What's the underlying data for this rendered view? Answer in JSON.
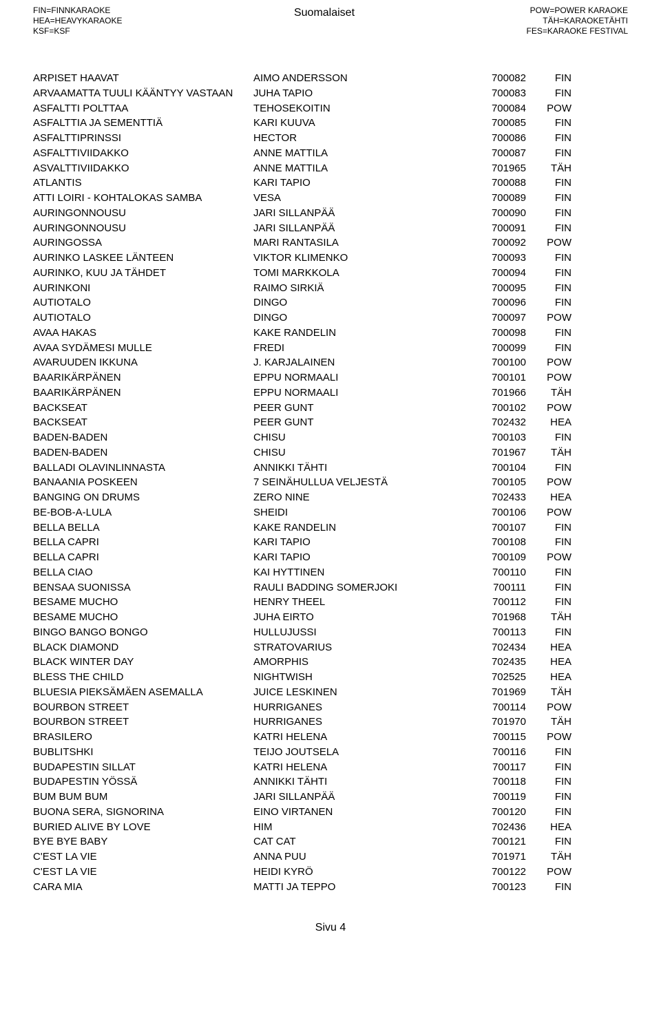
{
  "header": {
    "left": [
      "FIN=FINNKARAOKE",
      "HEA=HEAVYKARAOKE",
      "KSF=KSF"
    ],
    "center": "Suomalaiset",
    "right": [
      "POW=POWER KARAOKE",
      "TÄH=KARAOKETÄHTI",
      "FES=KARAOKE FESTIVAL"
    ]
  },
  "footer": "Sivu 4",
  "rows": [
    {
      "song": "ARPISET HAAVAT",
      "artist": "AIMO ANDERSSON",
      "id": "700082",
      "src": "FIN"
    },
    {
      "song": "ARVAAMATTA TUULI KÄÄNTYY VASTAAN",
      "artist": "JUHA TAPIO",
      "id": "700083",
      "src": "FIN"
    },
    {
      "song": "ASFALTTI POLTTAA",
      "artist": "TEHOSEKOITIN",
      "id": "700084",
      "src": "POW"
    },
    {
      "song": "ASFALTTIA JA SEMENTTIÄ",
      "artist": "KARI KUUVA",
      "id": "700085",
      "src": "FIN"
    },
    {
      "song": "ASFALTTIPRINSSI",
      "artist": "HECTOR",
      "id": "700086",
      "src": "FIN"
    },
    {
      "song": "ASFALTTIVIIDAKKO",
      "artist": "ANNE MATTILA",
      "id": "700087",
      "src": "FIN"
    },
    {
      "song": "ASVALTTIVIIDAKKO",
      "artist": "ANNE MATTILA",
      "id": "701965",
      "src": "TÄH"
    },
    {
      "song": "ATLANTIS",
      "artist": "KARI TAPIO",
      "id": "700088",
      "src": "FIN"
    },
    {
      "song": "ATTI LOIRI - KOHTALOKAS SAMBA",
      "artist": "VESA",
      "id": "700089",
      "src": "FIN"
    },
    {
      "song": "AURINGONNOUSU",
      "artist": "JARI SILLANPÄÄ",
      "id": "700090",
      "src": "FIN"
    },
    {
      "song": "AURINGONNOUSU",
      "artist": "JARI SILLANPÄÄ",
      "id": "700091",
      "src": "FIN"
    },
    {
      "song": "AURINGOSSA",
      "artist": "MARI RANTASILA",
      "id": "700092",
      "src": "POW"
    },
    {
      "song": "AURINKO LASKEE LÄNTEEN",
      "artist": "VIKTOR KLIMENKO",
      "id": "700093",
      "src": "FIN"
    },
    {
      "song": "AURINKO, KUU JA TÄHDET",
      "artist": "TOMI MARKKOLA",
      "id": "700094",
      "src": "FIN"
    },
    {
      "song": "AURINKONI",
      "artist": "RAIMO SIRKIÄ",
      "id": "700095",
      "src": "FIN"
    },
    {
      "song": "AUTIOTALO",
      "artist": "DINGO",
      "id": "700096",
      "src": "FIN"
    },
    {
      "song": "AUTIOTALO",
      "artist": "DINGO",
      "id": "700097",
      "src": "POW"
    },
    {
      "song": "AVAA HAKAS",
      "artist": "KAKE RANDELIN",
      "id": "700098",
      "src": "FIN"
    },
    {
      "song": "AVAA SYDÄMESI MULLE",
      "artist": "FREDI",
      "id": "700099",
      "src": "FIN"
    },
    {
      "song": "AVARUUDEN IKKUNA",
      "artist": "J. KARJALAINEN",
      "id": "700100",
      "src": "POW"
    },
    {
      "song": "BAARIKÄRPÄNEN",
      "artist": "EPPU NORMAALI",
      "id": "700101",
      "src": "POW"
    },
    {
      "song": "BAARIKÄRPÄNEN",
      "artist": "EPPU NORMAALI",
      "id": "701966",
      "src": "TÄH"
    },
    {
      "song": "BACKSEAT",
      "artist": "PEER GUNT",
      "id": "700102",
      "src": "POW"
    },
    {
      "song": "BACKSEAT",
      "artist": "PEER GUNT",
      "id": "702432",
      "src": "HEA"
    },
    {
      "song": "BADEN-BADEN",
      "artist": "CHISU",
      "id": "700103",
      "src": "FIN"
    },
    {
      "song": "BADEN-BADEN",
      "artist": "CHISU",
      "id": "701967",
      "src": "TÄH"
    },
    {
      "song": "BALLADI OLAVINLINNASTA",
      "artist": "ANNIKKI TÄHTI",
      "id": "700104",
      "src": "FIN"
    },
    {
      "song": "BANAANIA POSKEEN",
      "artist": "7 SEINÄHULLUA VELJESTÄ",
      "id": "700105",
      "src": "POW"
    },
    {
      "song": "BANGING ON DRUMS",
      "artist": "ZERO NINE",
      "id": "702433",
      "src": "HEA"
    },
    {
      "song": "BE-BOB-A-LULA",
      "artist": "SHEIDI",
      "id": "700106",
      "src": "POW"
    },
    {
      "song": "BELLA BELLA",
      "artist": "KAKE RANDELIN",
      "id": "700107",
      "src": "FIN"
    },
    {
      "song": "BELLA CAPRI",
      "artist": "KARI TAPIO",
      "id": "700108",
      "src": "FIN"
    },
    {
      "song": "BELLA CAPRI",
      "artist": "KARI TAPIO",
      "id": "700109",
      "src": "POW"
    },
    {
      "song": "BELLA CIAO",
      "artist": "KAI HYTTINEN",
      "id": "700110",
      "src": "FIN"
    },
    {
      "song": "BENSAA SUONISSA",
      "artist": "RAULI BADDING SOMERJOKI",
      "id": "700111",
      "src": "FIN"
    },
    {
      "song": "BESAME MUCHO",
      "artist": "HENRY THEEL",
      "id": "700112",
      "src": "FIN"
    },
    {
      "song": "BESAME MUCHO",
      "artist": "JUHA EIRTO",
      "id": "701968",
      "src": "TÄH"
    },
    {
      "song": "BINGO BANGO BONGO",
      "artist": "HULLUJUSSI",
      "id": "700113",
      "src": "FIN"
    },
    {
      "song": "BLACK DIAMOND",
      "artist": "STRATOVARIUS",
      "id": "702434",
      "src": "HEA"
    },
    {
      "song": "BLACK WINTER DAY",
      "artist": "AMORPHIS",
      "id": "702435",
      "src": "HEA"
    },
    {
      "song": "BLESS THE CHILD",
      "artist": "NIGHTWISH",
      "id": "702525",
      "src": "HEA"
    },
    {
      "song": "BLUESIA PIEKSÄMÄEN ASEMALLA",
      "artist": "JUICE LESKINEN",
      "id": "701969",
      "src": "TÄH"
    },
    {
      "song": "BOURBON STREET",
      "artist": "HURRIGANES",
      "id": "700114",
      "src": "POW"
    },
    {
      "song": "BOURBON STREET",
      "artist": "HURRIGANES",
      "id": "701970",
      "src": "TÄH"
    },
    {
      "song": "BRASILERO",
      "artist": "KATRI HELENA",
      "id": "700115",
      "src": "POW"
    },
    {
      "song": "BUBLITSHKI",
      "artist": "TEIJO JOUTSELA",
      "id": "700116",
      "src": "FIN"
    },
    {
      "song": "BUDAPESTIN SILLAT",
      "artist": "KATRI HELENA",
      "id": "700117",
      "src": "FIN"
    },
    {
      "song": "BUDAPESTIN YÖSSÄ",
      "artist": "ANNIKKI TÄHTI",
      "id": "700118",
      "src": "FIN"
    },
    {
      "song": "BUM BUM BUM",
      "artist": "JARI SILLANPÄÄ",
      "id": "700119",
      "src": "FIN"
    },
    {
      "song": "BUONA SERA, SIGNORINA",
      "artist": "EINO VIRTANEN",
      "id": "700120",
      "src": "FIN"
    },
    {
      "song": "BURIED ALIVE BY LOVE",
      "artist": "HIM",
      "id": "702436",
      "src": "HEA"
    },
    {
      "song": "BYE BYE BABY",
      "artist": "CAT CAT",
      "id": "700121",
      "src": "FIN"
    },
    {
      "song": "C'EST LA VIE",
      "artist": "ANNA PUU",
      "id": "701971",
      "src": "TÄH"
    },
    {
      "song": "C'EST LA VIE",
      "artist": "HEIDI KYRÖ",
      "id": "700122",
      "src": "POW"
    },
    {
      "song": "CARA MIA",
      "artist": "MATTI JA TEPPO",
      "id": "700123",
      "src": "FIN"
    }
  ]
}
